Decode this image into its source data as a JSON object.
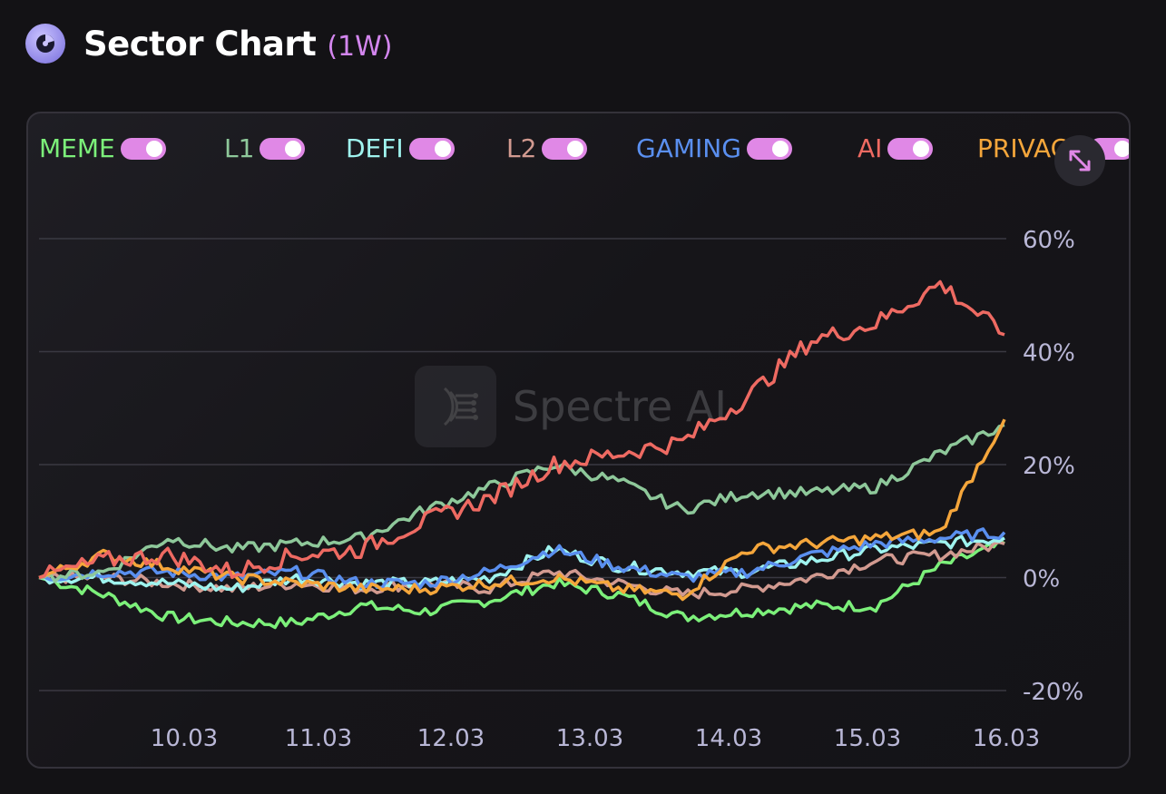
{
  "header": {
    "title": "Sector Chart",
    "period": "(1W)",
    "icon": "pie-chart-icon"
  },
  "legend": [
    {
      "label": "MEME",
      "color": "#7cf07a",
      "enabled": true
    },
    {
      "label": "L1",
      "color": "#8ec89a",
      "enabled": true
    },
    {
      "label": "DEFI",
      "color": "#9ff3ee",
      "enabled": true
    },
    {
      "label": "L2",
      "color": "#d29a90",
      "enabled": true
    },
    {
      "label": "GAMING",
      "color": "#5a8fef",
      "enabled": true
    },
    {
      "label": "AI",
      "color": "#ee6a62",
      "enabled": true
    },
    {
      "label": "PRIVACY",
      "color": "#f5a63b",
      "enabled": true
    }
  ],
  "controls": {
    "expand_icon": "expand-icon"
  },
  "watermark": {
    "text": "Spectre AI"
  },
  "colors": {
    "background": "#131215",
    "toggle": "#e088e6",
    "period": "#d386ee",
    "grid": "#3a3942",
    "tick": "#b9b7d6"
  },
  "chart_data": {
    "type": "line",
    "title": "Sector Chart",
    "x_ticks": [
      "10.03",
      "11.03",
      "12.03",
      "13.03",
      "14.03",
      "15.03",
      "16.03"
    ],
    "y_ticks": [
      "60%",
      "40%",
      "20%",
      "0%",
      "-20%"
    ],
    "ylim": [
      -20,
      60
    ],
    "yunit": "%",
    "grid": true,
    "legend_position": "top",
    "x": [
      "09.03 00:00",
      "09.03 12:00",
      "10.03 00:00",
      "10.03 12:00",
      "11.03 00:00",
      "11.03 12:00",
      "12.03 00:00",
      "12.03 12:00",
      "13.03 00:00",
      "13.03 12:00",
      "14.03 00:00",
      "14.03 12:00",
      "15.03 00:00",
      "15.03 12:00",
      "15.03 18:00",
      "16.03 00:00"
    ],
    "series": [
      {
        "name": "MEME",
        "values": [
          0,
          -3,
          -7,
          -8,
          -8,
          -5,
          -6,
          -4,
          -1,
          -3,
          -7,
          -6,
          -5,
          -5,
          2,
          6
        ]
      },
      {
        "name": "L1",
        "values": [
          0,
          1,
          7,
          5,
          6,
          7,
          12,
          16,
          20,
          17,
          12,
          15,
          15,
          16,
          22,
          27
        ]
      },
      {
        "name": "DEFI",
        "values": [
          0,
          0,
          -1,
          -2,
          0,
          -1,
          -1,
          0,
          5,
          2,
          1,
          1,
          3,
          5,
          6,
          7
        ]
      },
      {
        "name": "L2",
        "values": [
          0,
          0,
          -1,
          -2,
          -1,
          -2,
          -1,
          -2,
          1,
          -1,
          -3,
          -2,
          0,
          3,
          4,
          6
        ]
      },
      {
        "name": "GAMING",
        "values": [
          0,
          1,
          1,
          0,
          1,
          -1,
          -1,
          1,
          5,
          2,
          0,
          1,
          4,
          6,
          7,
          8
        ]
      },
      {
        "name": "AI",
        "values": [
          0,
          3,
          4,
          1,
          4,
          5,
          10,
          14,
          20,
          22,
          24,
          32,
          42,
          45,
          52,
          43
        ]
      },
      {
        "name": "PRIVACY",
        "values": [
          0,
          4,
          2,
          0,
          -1,
          -2,
          -2,
          -1,
          0,
          -2,
          -3,
          5,
          6,
          7,
          8,
          28
        ]
      }
    ]
  }
}
